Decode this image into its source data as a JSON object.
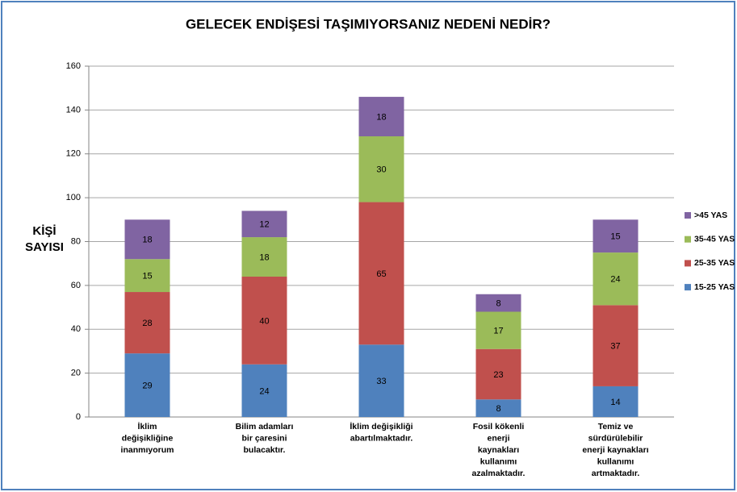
{
  "chart_data": {
    "type": "stacked_bar",
    "title": "GELECEK ENDİŞESİ TAŞIMIYORSANIZ NEDENİ NEDİR?",
    "ylabel": [
      "KİŞİ",
      "SAYISI"
    ],
    "categories": [
      [
        "İklim",
        "değişikliğine",
        "inanmıyorum"
      ],
      [
        "Bilim adamları",
        "bir çaresini",
        "bulacaktır."
      ],
      [
        "İklim değişikliği",
        "abartılmaktadır."
      ],
      [
        "Fosil kökenli",
        "enerji",
        "kaynakları",
        "kullanımı",
        "azalmaktadır."
      ],
      [
        "Temiz ve",
        "sürdürülebilir",
        "enerji kaynakları",
        "kullanımı",
        "artmaktadır."
      ]
    ],
    "series": [
      {
        "name": "15-25 YAS",
        "color": "#4f81bd",
        "values": [
          29,
          24,
          33,
          8,
          14
        ]
      },
      {
        "name": "25-35 YAS",
        "color": "#c0504d",
        "values": [
          28,
          40,
          65,
          23,
          37
        ]
      },
      {
        "name": "35-45 YAS",
        "color": "#9bbb59",
        "values": [
          15,
          18,
          30,
          17,
          24
        ]
      },
      {
        "name": ">45 YAS",
        "color": "#8064a2",
        "values": [
          18,
          12,
          18,
          8,
          15
        ]
      }
    ],
    "ylim": [
      0,
      160
    ],
    "yticks": [
      0,
      20,
      40,
      60,
      80,
      100,
      120,
      140,
      160
    ],
    "grid": true,
    "legend": "right"
  }
}
